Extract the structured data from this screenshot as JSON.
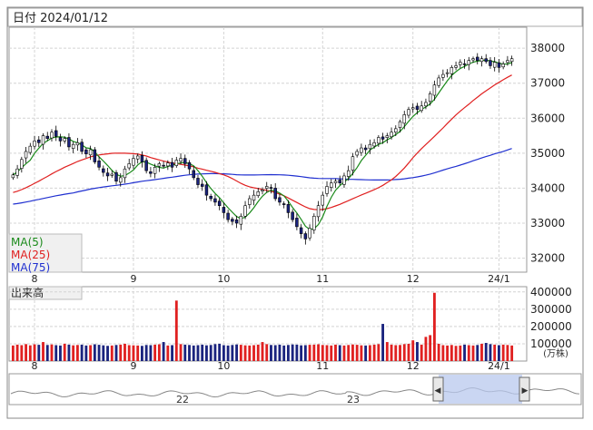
{
  "header": {
    "date_label": "日付 2024/01/12"
  },
  "chart_data": [
    {
      "type": "candlestick",
      "title": "",
      "x_tick_labels": [
        "8",
        "9",
        "10",
        "11",
        "12",
        "24/1"
      ],
      "y_ticks": [
        32000,
        33000,
        34000,
        35000,
        36000,
        37000,
        38000
      ],
      "ylim": [
        31600,
        38600
      ],
      "grid": true,
      "legend": {
        "placement": "bottom-left",
        "entries": [
          "MA(5)",
          "MA(25)",
          "MA(75)"
        ]
      },
      "colors": {
        "up": "#ffffff",
        "down": "#1a237e",
        "wick": "#000000",
        "ma5": "#1a8a1a",
        "ma25": "#e02020",
        "ma75": "#2030d0"
      },
      "closes": [
        34380,
        34550,
        34820,
        35050,
        35200,
        35350,
        35300,
        35500,
        35420,
        35600,
        35480,
        35350,
        35420,
        35180,
        35250,
        35300,
        35050,
        34980,
        35100,
        34750,
        34600,
        34450,
        34350,
        34400,
        34200,
        34300,
        34550,
        34700,
        34850,
        34920,
        34750,
        34500,
        34420,
        34600,
        34700,
        34650,
        34720,
        34600,
        34800,
        34850,
        34700,
        34550,
        34300,
        34100,
        34050,
        33800,
        33700,
        33600,
        33500,
        33300,
        33100,
        33050,
        33000,
        33200,
        33500,
        33700,
        33800,
        33900,
        33950,
        34050,
        34000,
        33700,
        33600,
        33550,
        33300,
        33100,
        32900,
        32700,
        32550,
        32850,
        33200,
        33500,
        33800,
        34050,
        34150,
        34200,
        34150,
        34350,
        34500,
        34900,
        35050,
        35150,
        35100,
        35250,
        35300,
        35450,
        35400,
        35500,
        35600,
        35700,
        35900,
        36100,
        36250,
        36300,
        36250,
        36350,
        36450,
        36700,
        36950,
        37150,
        37250,
        37300,
        37450,
        37500,
        37600,
        37550,
        37650,
        37700,
        37650,
        37700,
        37620,
        37500,
        37600,
        37450,
        37550,
        37650,
        37700
      ]
    },
    {
      "type": "bar",
      "title": "出来高",
      "unit_label": "(万株)",
      "y_ticks": [
        100000,
        200000,
        300000,
        400000
      ],
      "ylim": [
        0,
        420000
      ],
      "x_tick_labels": [
        "8",
        "9",
        "10",
        "11",
        "12",
        "24/1"
      ],
      "values": [
        90000,
        95000,
        92000,
        98000,
        91000,
        97000,
        94000,
        110000,
        93000,
        96000,
        92000,
        90000,
        100000,
        95000,
        91000,
        93000,
        95000,
        90000,
        92000,
        97000,
        94000,
        91000,
        88000,
        90000,
        93000,
        95000,
        100000,
        92000,
        91000,
        90000,
        88000,
        93000,
        92000,
        95000,
        97000,
        110000,
        90000,
        92000,
        350000,
        98000,
        95000,
        93000,
        90000,
        92000,
        95000,
        91000,
        93000,
        98000,
        100000,
        92000,
        90000,
        93000,
        96000,
        94000,
        91000,
        90000,
        92000,
        95000,
        110000,
        98000,
        93000,
        92000,
        95000,
        90000,
        93000,
        96000,
        95000,
        91000,
        92000,
        94000,
        95000,
        97000,
        93000,
        92000,
        90000,
        95000,
        92000,
        90000,
        93000,
        96000,
        94000,
        91000,
        90000,
        92000,
        95000,
        98000,
        215000,
        110000,
        95000,
        92000,
        93000,
        98000,
        100000,
        120000,
        110000,
        95000,
        140000,
        150000,
        395000,
        100000,
        92000,
        90000,
        93000,
        88000,
        90000,
        95000,
        92000,
        90000,
        93000,
        100000,
        105000,
        98000,
        95000,
        92000,
        95000,
        93000,
        90000
      ]
    },
    {
      "type": "area",
      "title": "",
      "x_tick_labels": [
        "22",
        "23"
      ]
    }
  ],
  "navigator": {
    "left_arrow": "◀",
    "right_arrow": "▶"
  }
}
